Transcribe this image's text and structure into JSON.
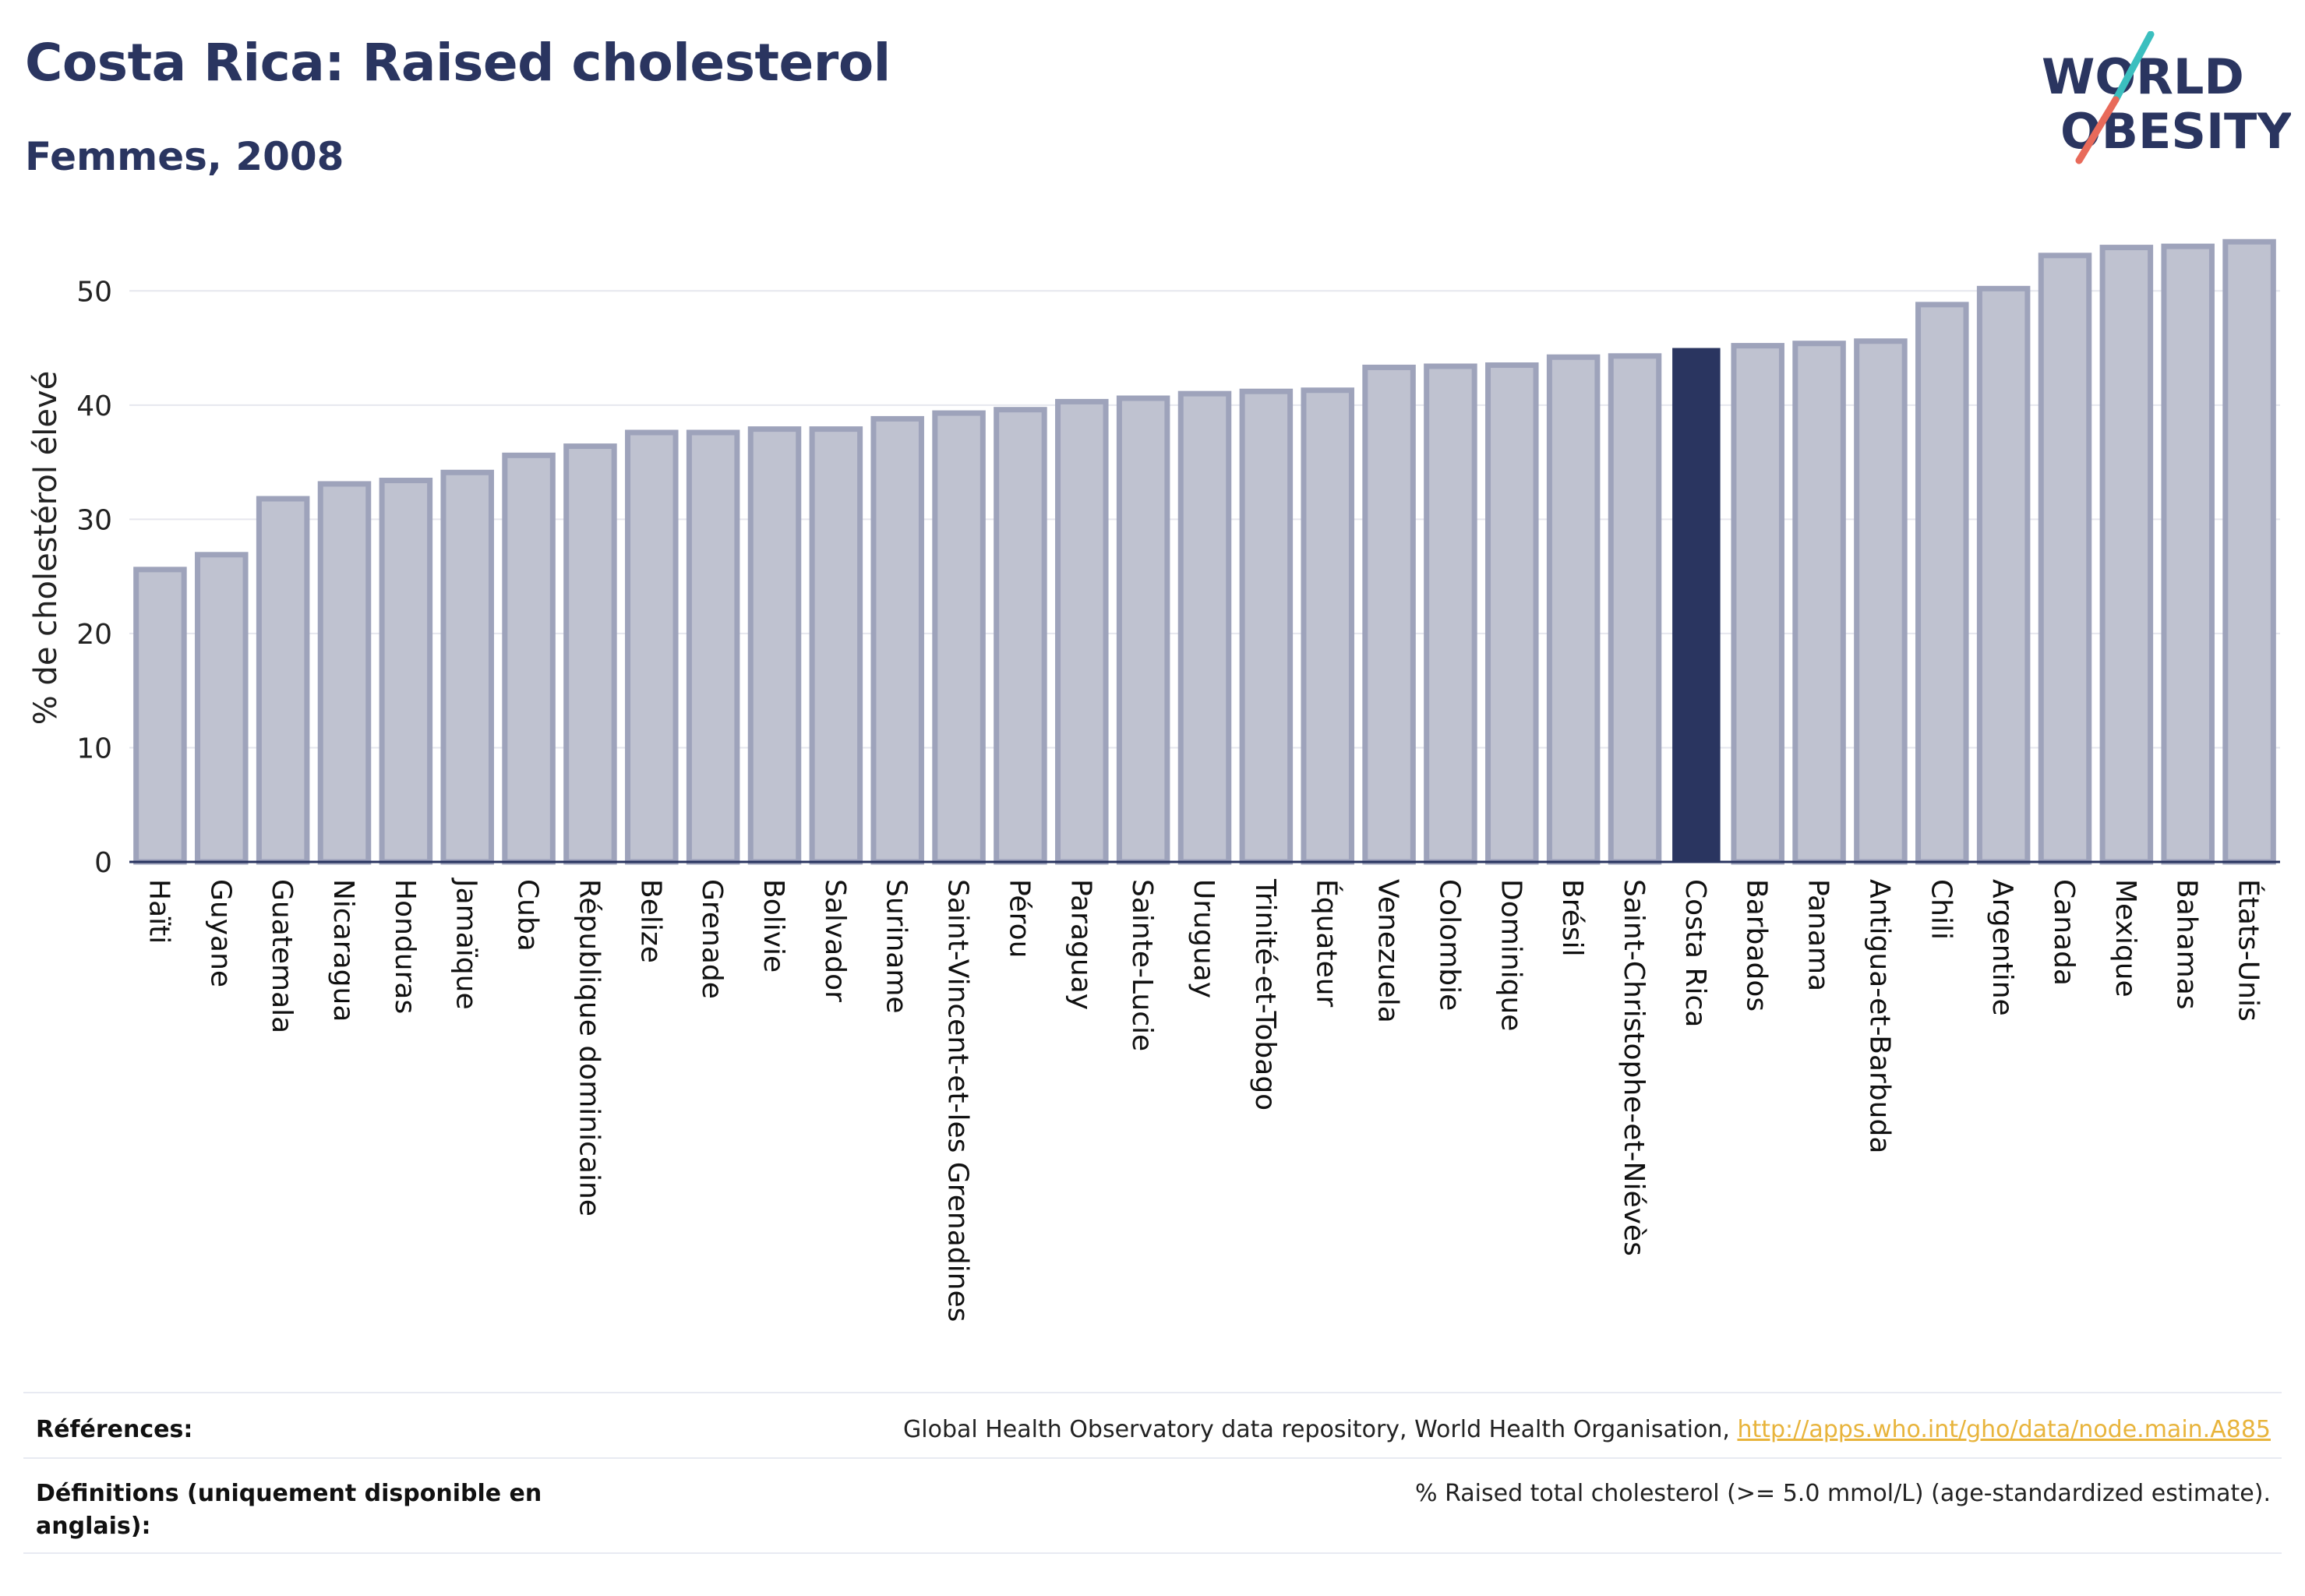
{
  "header": {
    "title": "Costa Rica: Raised cholesterol",
    "subtitle": "Femmes, 2008"
  },
  "logo": {
    "line1": "WORLD",
    "line2": "OBESITY",
    "colors": {
      "text": "#2a3560",
      "slash_top": "#3bbfbf",
      "slash_bottom": "#e86a5a"
    }
  },
  "colors": {
    "bar": "#bfc2d0",
    "bar_stroke": "#9ea3bb",
    "highlight": "#2a3560",
    "axis": "#2a3560",
    "grid": "#e6e7ee"
  },
  "chart_data": {
    "type": "bar",
    "ylabel": "% de cholestérol élevé",
    "ylim": [
      0,
      55
    ],
    "yticks": [
      0,
      10,
      20,
      30,
      40,
      50
    ],
    "grid": true,
    "highlight": "Costa Rica",
    "categories": [
      "Haïti",
      "Guyane",
      "Guatemala",
      "Nicaragua",
      "Honduras",
      "Jamaïque",
      "Cuba",
      "République dominicaine",
      "Belize",
      "Grenade",
      "Bolivie",
      "Salvador",
      "Suriname",
      "Saint-Vincent-et-les Grenadines",
      "Pérou",
      "Paraguay",
      "Sainte-Lucie",
      "Uruguay",
      "Trinité-et-Tobago",
      "Équateur",
      "Venezuela",
      "Colombie",
      "Dominique",
      "Brésil",
      "Saint-Christophe-et-Niévès",
      "Costa Rica",
      "Barbados",
      "Panama",
      "Antigua-et-Barbuda",
      "Chili",
      "Argentine",
      "Canada",
      "Mexique",
      "Bahamas",
      "États-Unis"
    ],
    "values": [
      25.6,
      26.9,
      31.8,
      33.1,
      33.4,
      34.1,
      35.6,
      36.4,
      37.6,
      37.6,
      37.9,
      37.9,
      38.8,
      39.3,
      39.6,
      40.3,
      40.6,
      41.0,
      41.2,
      41.3,
      43.3,
      43.4,
      43.5,
      44.2,
      44.3,
      45.0,
      45.2,
      45.4,
      45.6,
      48.8,
      50.2,
      53.1,
      53.8,
      53.9,
      54.3
    ]
  },
  "footer": {
    "references_label": "Références:",
    "references_text": "Global Health Observatory data repository, World Health Organisation, ",
    "references_link": "http://apps.who.int/gho/data/node.main.A885",
    "definitions_label": "Définitions (uniquement disponible en anglais):",
    "definitions_text": "% Raised total cholesterol (>= 5.0 mmol/L) (age-standardized estimate)."
  }
}
